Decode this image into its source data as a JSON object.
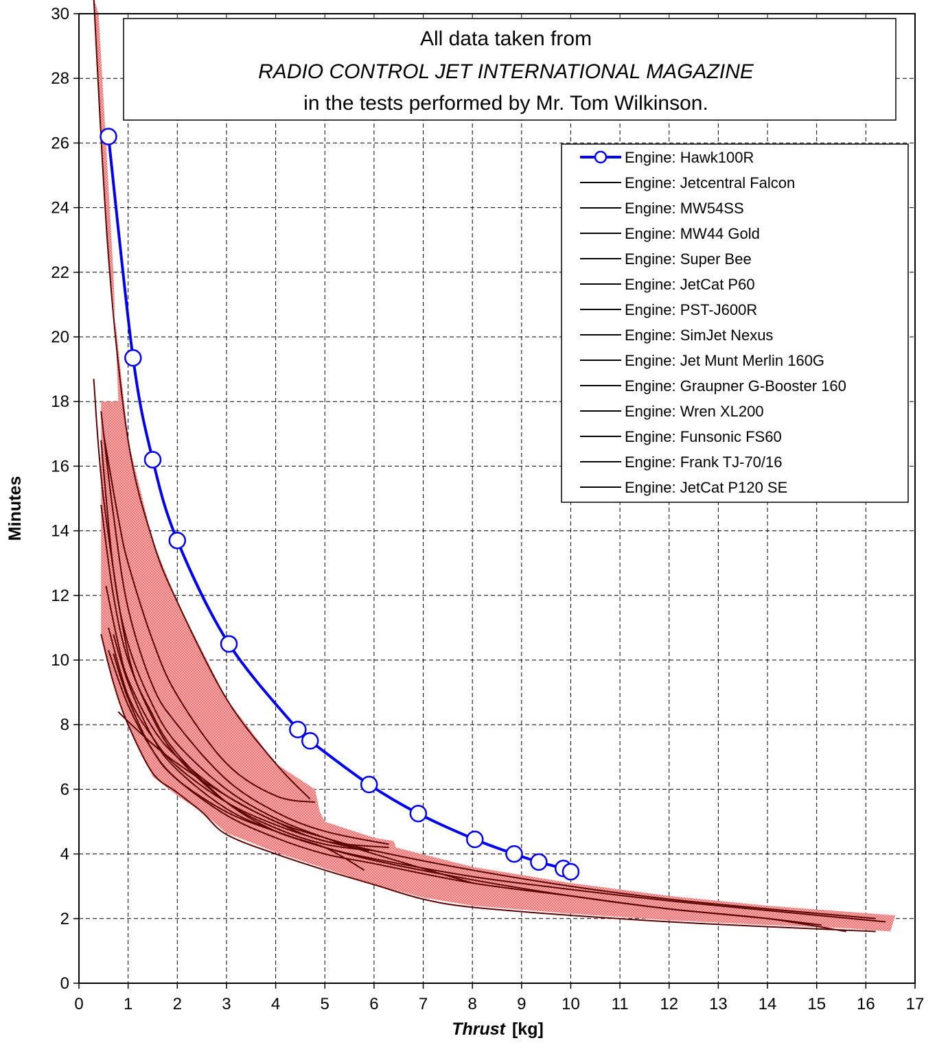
{
  "chart_data": {
    "type": "line",
    "xlabel_italic": "Thrust",
    "xlabel_unit": "[kg]",
    "ylabel": "Minutes",
    "xlim": [
      0,
      17
    ],
    "ylim": [
      0,
      30
    ],
    "x_ticks": [
      0,
      1,
      2,
      3,
      4,
      5,
      6,
      7,
      8,
      9,
      10,
      11,
      12,
      13,
      14,
      15,
      16,
      17
    ],
    "y_ticks": [
      0,
      2,
      4,
      6,
      8,
      10,
      12,
      14,
      16,
      18,
      20,
      22,
      24,
      26,
      28,
      30
    ],
    "grid": true,
    "legend_position": "top-right",
    "note_lines": [
      "All data taken from",
      "RADIO CONTROL JET INTERNATIONAL MAGAZINE",
      "in the tests performed by Mr. Tom Wilkinson."
    ],
    "colors": {
      "highlight": "#0000ee",
      "others": "#000000",
      "band": "#f08080",
      "others_overlay": "#5a0000"
    },
    "series": [
      {
        "name": "Engine: Hawk100R",
        "highlight": true,
        "x": [
          0.6,
          1.1,
          1.5,
          2.0,
          3.05,
          4.45,
          4.7,
          5.9,
          6.9,
          8.05,
          8.85,
          9.35,
          9.85,
          10.0
        ],
        "y": [
          26.2,
          19.35,
          16.2,
          13.7,
          10.5,
          7.85,
          7.5,
          6.15,
          5.25,
          4.45,
          4.0,
          3.75,
          3.55,
          3.45
        ]
      },
      {
        "name": "Engine: Jetcentral Falcon",
        "x": [
          0.3,
          0.6,
          1.0,
          1.5,
          2.0,
          3.0,
          4.0,
          4.7
        ],
        "y": [
          30.5,
          22.5,
          16.8,
          13.7,
          11.8,
          8.8,
          6.8,
          5.7
        ]
      },
      {
        "name": "Engine: MW54SS",
        "x": [
          0.3,
          0.5,
          1.0,
          1.5,
          2.0,
          3.0,
          4.0,
          5.0,
          5.8
        ],
        "y": [
          18.7,
          15.0,
          10.2,
          8.3,
          7.1,
          5.6,
          4.7,
          4.2,
          3.5
        ]
      },
      {
        "name": "Engine: MW44 Gold",
        "x": [
          0.45,
          0.7,
          1.0,
          1.5,
          2.0,
          3.0,
          4.0,
          5.0,
          6.3
        ],
        "y": [
          17.7,
          14.5,
          11.6,
          9.2,
          8.0,
          6.3,
          5.3,
          4.7,
          4.3
        ]
      },
      {
        "name": "Engine: Super Bee",
        "x": [
          0.5,
          0.8,
          1.0,
          1.5,
          2.0,
          3.0,
          4.0,
          4.8
        ],
        "y": [
          17.0,
          14.4,
          13.0,
          10.6,
          8.9,
          6.8,
          5.8,
          5.6
        ]
      },
      {
        "name": "Engine: JetCat P60",
        "x": [
          0.45,
          0.7,
          1.0,
          1.5,
          2.0,
          3.0,
          4.0,
          5.0,
          6.0
        ],
        "y": [
          14.8,
          12.0,
          10.0,
          8.2,
          7.0,
          5.6,
          4.8,
          4.3,
          4.1
        ]
      },
      {
        "name": "Engine: PST-J600R",
        "x": [
          0.55,
          0.8,
          1.0,
          1.5,
          2.0,
          3.0,
          4.0,
          5.0,
          6.3
        ],
        "y": [
          12.3,
          10.5,
          9.4,
          7.9,
          7.0,
          5.8,
          5.0,
          4.4,
          4.2
        ]
      },
      {
        "name": "Engine: SimJet Nexus",
        "x": [
          0.6,
          1.0,
          1.5,
          2.0,
          3.0,
          4.0,
          5.0,
          5.9
        ],
        "y": [
          11.0,
          8.9,
          7.6,
          6.7,
          5.6,
          4.9,
          4.4,
          4.1
        ]
      },
      {
        "name": "Engine: Jet Munt Merlin 160G",
        "x": [
          0.8,
          1.0,
          1.5,
          2.0,
          3.0,
          4.0,
          5.0,
          6.0,
          8.0,
          10.0,
          12.0,
          14.0,
          16.2
        ],
        "y": [
          8.4,
          8.1,
          7.4,
          6.8,
          5.8,
          5.0,
          4.5,
          4.1,
          3.5,
          3.0,
          2.6,
          2.3,
          2.0
        ]
      },
      {
        "name": "Engine: Graupner G-Booster 160",
        "x": [
          0.7,
          1.0,
          1.5,
          2.0,
          3.0,
          4.0,
          5.0,
          6.0,
          8.0,
          10.0,
          12.0,
          14.0,
          16.4
        ],
        "y": [
          10.8,
          9.3,
          7.6,
          6.6,
          5.4,
          4.7,
          4.2,
          3.85,
          3.3,
          2.9,
          2.55,
          2.25,
          1.9
        ]
      },
      {
        "name": "Engine: Wren XL200",
        "x": [
          0.7,
          1.0,
          1.5,
          2.0,
          3.0,
          4.0,
          5.0,
          6.0,
          8.0,
          10.0,
          12.0,
          14.0,
          15.6
        ],
        "y": [
          10.2,
          8.8,
          7.2,
          6.3,
          5.3,
          4.7,
          4.2,
          3.8,
          3.2,
          2.7,
          2.3,
          2.0,
          1.6
        ]
      },
      {
        "name": "Engine: Funsonic FS60",
        "x": [
          0.45,
          0.7,
          1.0,
          1.5,
          2.0,
          3.0,
          4.0,
          5.0,
          6.0,
          8.0
        ],
        "y": [
          16.8,
          12.8,
          10.5,
          8.6,
          7.4,
          6.0,
          5.1,
          4.5,
          4.0,
          3.1
        ]
      },
      {
        "name": "Engine: Frank TJ-70/16",
        "x": [
          0.6,
          1.0,
          1.5,
          2.0,
          3.0,
          4.0,
          5.0,
          6.0,
          8.0,
          10.0,
          12.0,
          14.0,
          15.1
        ],
        "y": [
          10.3,
          8.6,
          7.2,
          6.3,
          5.2,
          4.5,
          4.0,
          3.7,
          3.1,
          2.7,
          2.3,
          2.0,
          1.8
        ]
      },
      {
        "name": "Engine: JetCat P120 SE",
        "x": [
          0.45,
          0.7,
          1.0,
          1.5,
          2.0,
          2.5,
          3.0,
          4.0,
          5.0,
          6.0,
          7.0,
          8.0,
          10.0,
          12.0,
          14.0,
          16.2
        ],
        "y": [
          10.8,
          9.3,
          8.0,
          6.5,
          5.9,
          5.3,
          4.6,
          4.0,
          3.5,
          3.05,
          2.6,
          2.35,
          2.1,
          1.9,
          1.75,
          1.6
        ]
      }
    ],
    "band_upper": [
      [
        0.3,
        30.5
      ],
      [
        0.6,
        22.5
      ],
      [
        1.0,
        16.8
      ],
      [
        1.5,
        13.7
      ],
      [
        2.0,
        11.8
      ],
      [
        3.0,
        8.8
      ],
      [
        4.0,
        6.8
      ],
      [
        4.8,
        6.0
      ],
      [
        4.9,
        5.3
      ],
      [
        5.0,
        5.0
      ],
      [
        6.0,
        4.5
      ],
      [
        6.4,
        4.4
      ],
      [
        6.45,
        4.2
      ],
      [
        8.0,
        3.6
      ],
      [
        10.0,
        3.1
      ],
      [
        12.0,
        2.7
      ],
      [
        14.0,
        2.4
      ],
      [
        16.6,
        2.1
      ]
    ],
    "band_lower": [
      [
        16.5,
        1.6
      ],
      [
        15.6,
        1.7
      ],
      [
        14.0,
        1.8
      ],
      [
        12.0,
        1.95
      ],
      [
        10.0,
        2.15
      ],
      [
        8.0,
        2.4
      ],
      [
        7.0,
        2.65
      ],
      [
        6.0,
        3.05
      ],
      [
        5.0,
        3.55
      ],
      [
        4.0,
        4.05
      ],
      [
        3.0,
        4.65
      ],
      [
        2.5,
        5.3
      ],
      [
        2.0,
        5.8
      ],
      [
        1.5,
        6.4
      ],
      [
        1.0,
        8.0
      ],
      [
        0.7,
        9.3
      ],
      [
        0.45,
        10.8
      ],
      [
        0.45,
        18.0
      ],
      [
        0.8,
        18.0
      ],
      [
        0.7,
        22.0
      ],
      [
        0.4,
        30.0
      ]
    ]
  }
}
